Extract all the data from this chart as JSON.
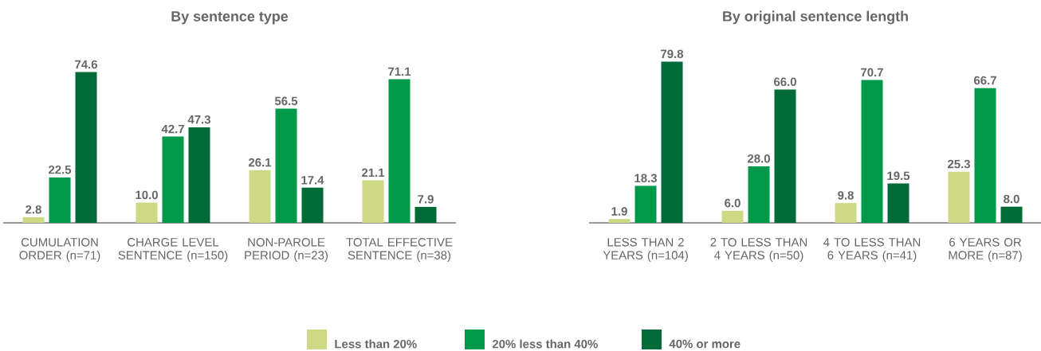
{
  "chart_data": [
    {
      "type": "bar",
      "title": "By sentence type",
      "categories": [
        "CUMULATION ORDER (n=71)",
        "CHARGE LEVEL SENTENCE (n=150)",
        "NON-PAROLE PERIOD (n=23)",
        "TOTAL EFFECTIVE SENTENCE (n=38)"
      ],
      "legend": "bottom",
      "series": [
        {
          "name": "Less than 20%",
          "color": "#cdd985",
          "values": [
            2.8,
            10.0,
            26.1,
            21.1
          ],
          "value_labels": [
            "2.8",
            "10.0",
            "26.1",
            "21.1"
          ]
        },
        {
          "name": "20% less than 40%",
          "color": "#00994a",
          "values": [
            22.5,
            42.7,
            56.5,
            71.1
          ],
          "value_labels": [
            "22.5",
            "42.7",
            "56.5",
            "71.1"
          ]
        },
        {
          "name": "40% or more",
          "color": "#006a38",
          "values": [
            74.6,
            47.3,
            17.4,
            7.9
          ],
          "value_labels": [
            "74.6",
            "47.3",
            "17.4",
            "7.9"
          ]
        }
      ]
    },
    {
      "type": "bar",
      "title": "By original sentence length",
      "categories": [
        "LESS THAN 2 YEARS (n=104)",
        "2 TO LESS THAN 4 YEARS (n=50)",
        "4 TO LESS THAN 6 YEARS (n=41)",
        "6 YEARS OR MORE (n=87)"
      ],
      "series": [
        {
          "color": "#cdd985",
          "values": [
            1.9,
            6.0,
            9.8,
            25.3
          ],
          "value_labels": [
            "1.9",
            "6.0",
            "9.8",
            "25.3"
          ]
        },
        {
          "color": "#00994a",
          "values": [
            18.3,
            28.0,
            70.7,
            66.7
          ],
          "value_labels": [
            "18.3",
            "28.0",
            "70.7",
            "66.7"
          ]
        },
        {
          "color": "#006a38",
          "values": [
            79.8,
            66.0,
            19.5,
            8.0
          ],
          "value_labels": [
            "79.8",
            "66.0",
            "19.5",
            "8.0"
          ]
        }
      ]
    }
  ]
}
